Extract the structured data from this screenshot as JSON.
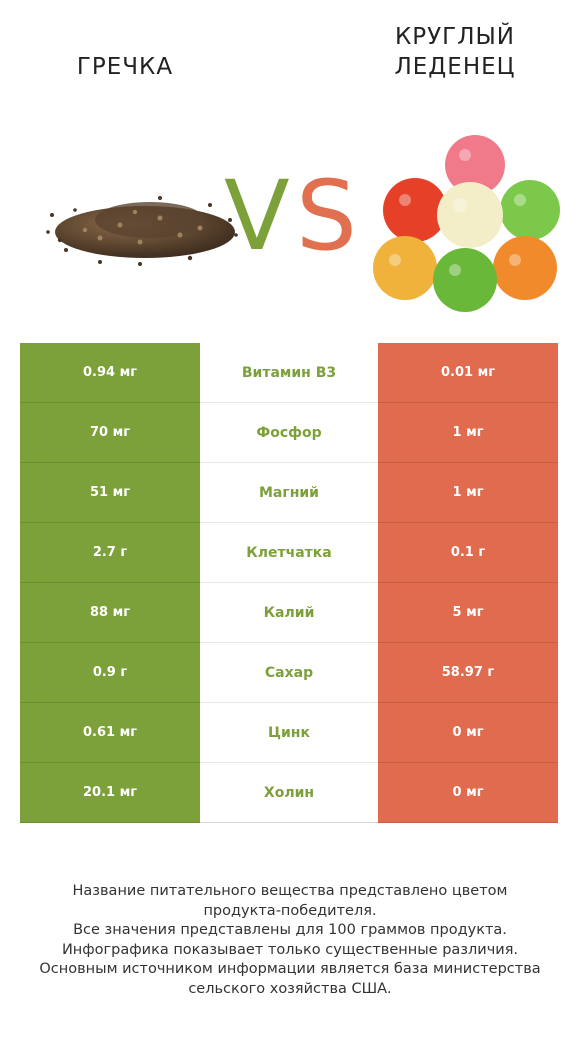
{
  "header": {
    "left_title": "ГРЕЧКА",
    "right_title_line1": "КРУГЛЫЙ",
    "right_title_line2": "ЛЕДЕНЕЦ",
    "vs_v": "V",
    "vs_s": "S"
  },
  "colors": {
    "winner_left": "#7ca13a",
    "winner_right": "#e06b4e"
  },
  "rows": [
    {
      "left": "0.94 мг",
      "name": "Витамин B3",
      "right": "0.01 мг"
    },
    {
      "left": "70 мг",
      "name": "Фосфор",
      "right": "1 мг"
    },
    {
      "left": "51 мг",
      "name": "Магний",
      "right": "1 мг"
    },
    {
      "left": "2.7 г",
      "name": "Клетчатка",
      "right": "0.1 г"
    },
    {
      "left": "88 мг",
      "name": "Калий",
      "right": "5 мг"
    },
    {
      "left": "0.9 г",
      "name": "Сахар",
      "right": "58.97 г"
    },
    {
      "left": "0.61 мг",
      "name": "Цинк",
      "right": "0 мг"
    },
    {
      "left": "20.1 мг",
      "name": "Холин",
      "right": "0 мг"
    }
  ],
  "footer": [
    "Название питательного вещества представлено цветом",
    "продукта-победителя.",
    "Все значения представлены для 100 граммов продукта.",
    "Инфографика показывает только существенные различия.",
    "Основным источником информации является база министерства",
    "сельского хозяйства США."
  ]
}
